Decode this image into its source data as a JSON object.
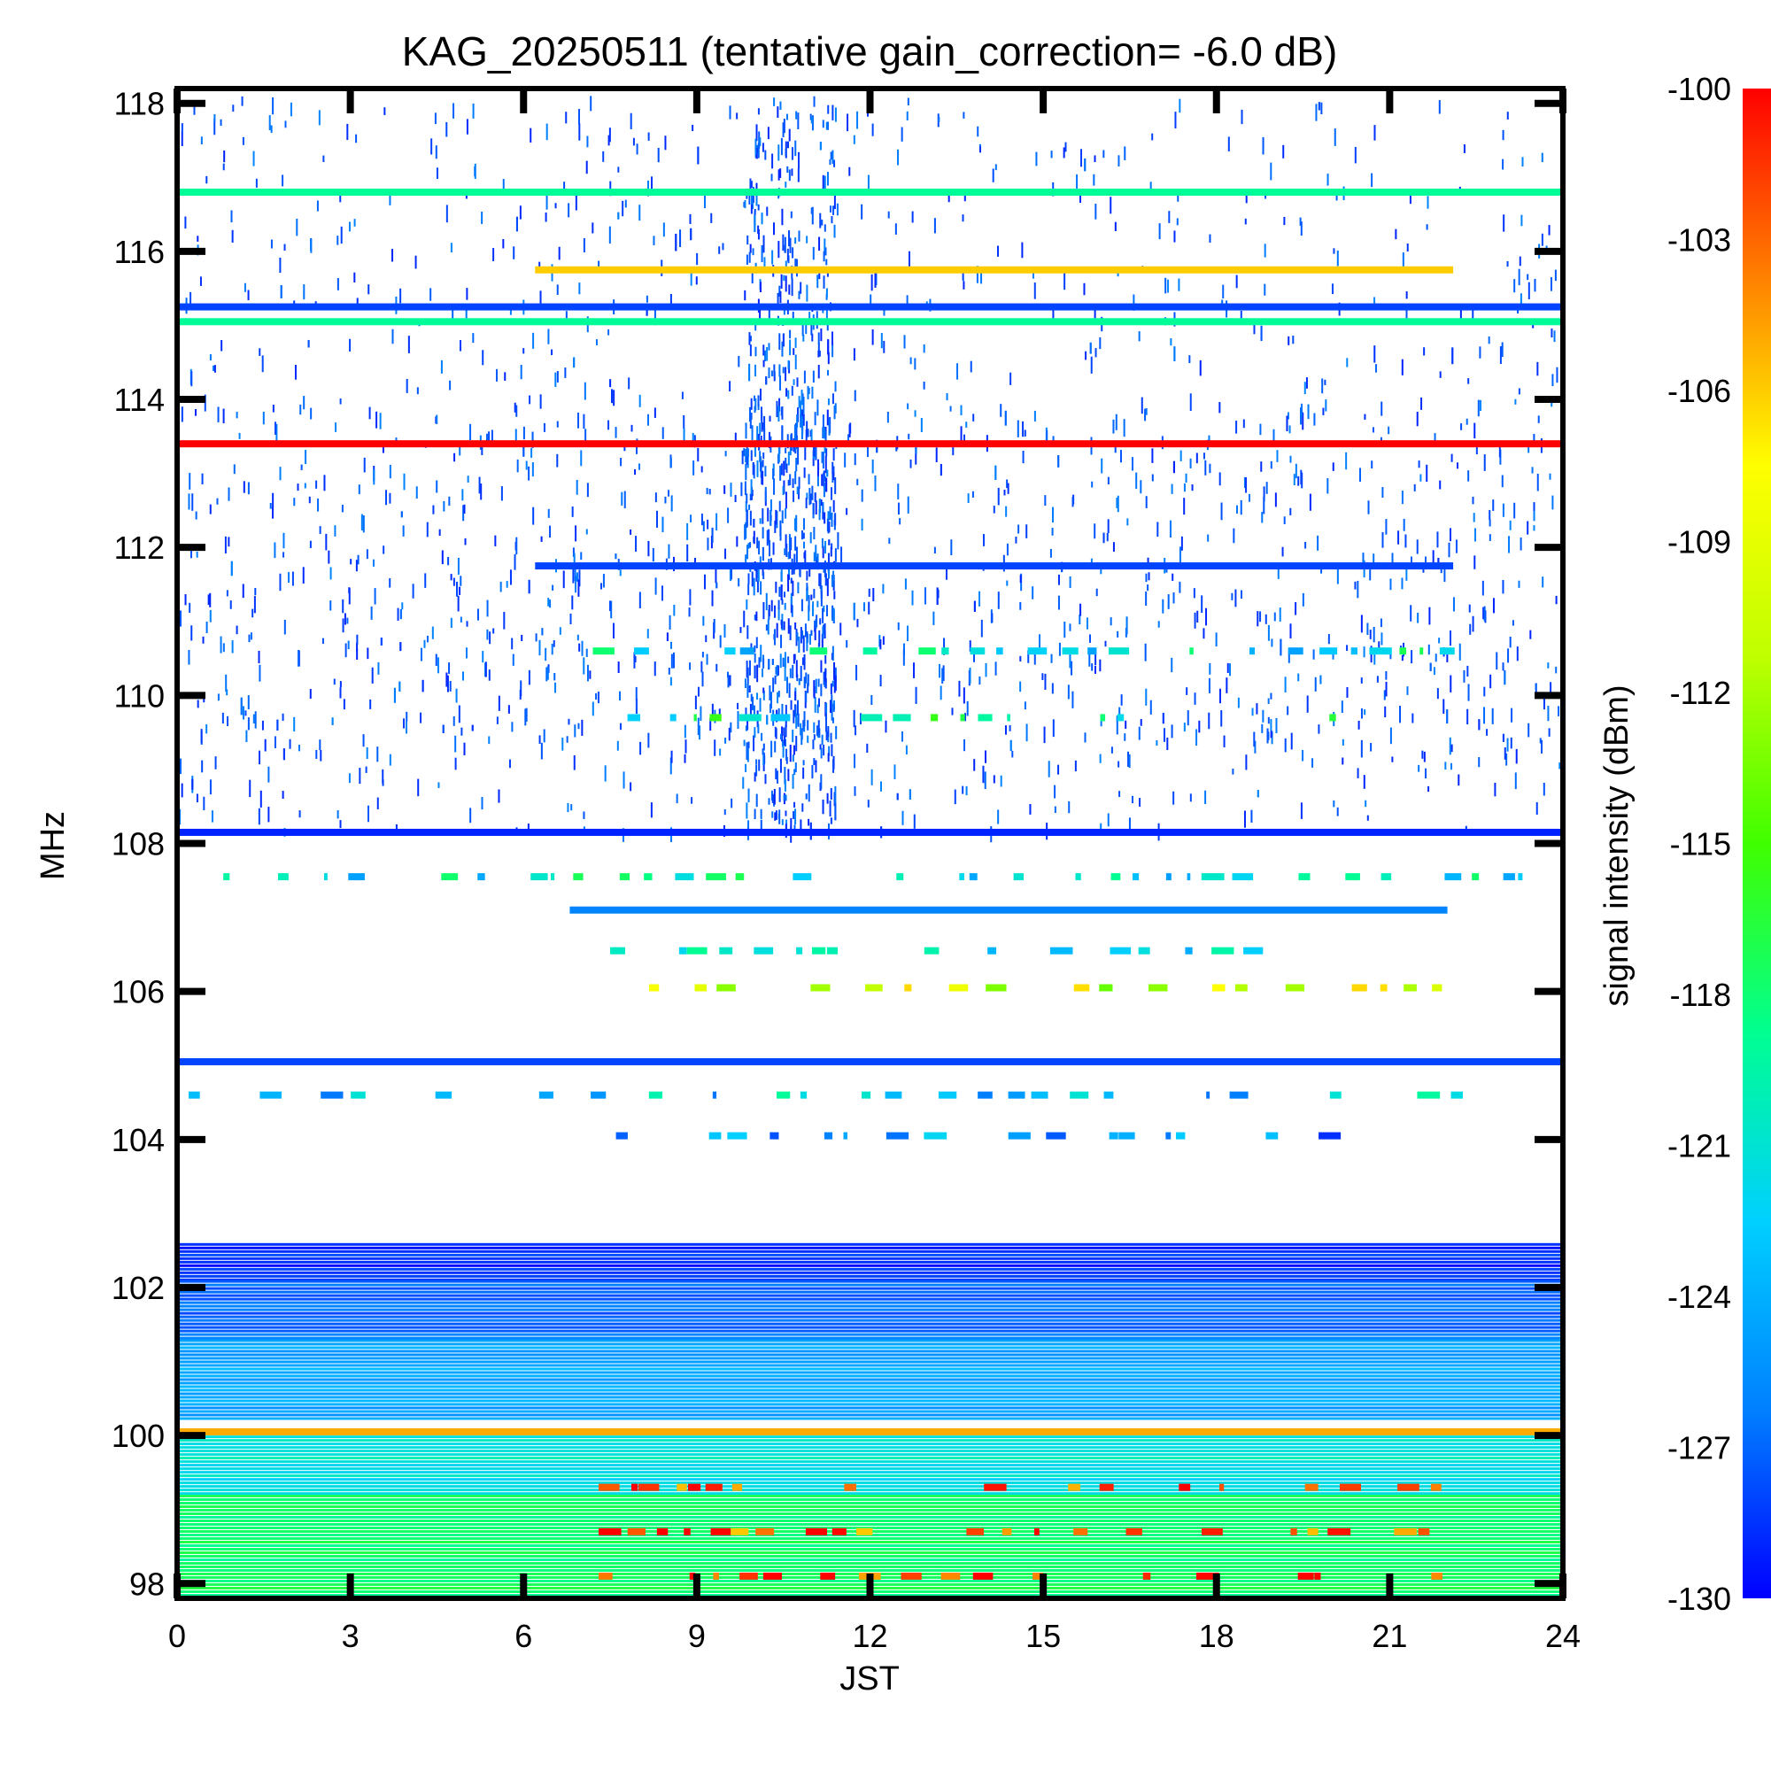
{
  "chart_data": {
    "type": "heatmap",
    "title": "KAG_20250511 (tentative gain_correction= -6.0 dB)",
    "xlabel": "JST",
    "ylabel": "MHz",
    "colorbar_label": "signal intensity (dBm)",
    "xlim": [
      0,
      24
    ],
    "ylim": [
      97.8,
      118.2
    ],
    "clim": [
      -130,
      -100
    ],
    "x_ticks": [
      0,
      3,
      6,
      9,
      12,
      15,
      18,
      21,
      24
    ],
    "x_tick_labels": [
      "0",
      "3",
      "6",
      "9",
      "12",
      "15",
      "18",
      "21",
      "24"
    ],
    "y_ticks": [
      98,
      100,
      102,
      104,
      106,
      108,
      110,
      112,
      114,
      116,
      118
    ],
    "y_tick_labels": [
      "98",
      "100",
      "102",
      "104",
      "106",
      "108",
      "110",
      "112",
      "114",
      "116",
      "118"
    ],
    "colorbar_ticks": [
      -100,
      -103,
      -106,
      -109,
      -112,
      -115,
      -118,
      -121,
      -124,
      -127,
      -130
    ],
    "colorbar_tick_labels": [
      "-100",
      "-103",
      "-106",
      "-109",
      "-112",
      "-115",
      "-118",
      "-121",
      "-124",
      "-127",
      "-130"
    ],
    "colormap": [
      "#0000ff",
      "#0080ff",
      "#00d0ff",
      "#00ff90",
      "#40ff00",
      "#c0ff00",
      "#ffff00",
      "#ff8000",
      "#ff0000"
    ],
    "continuous_bands": [
      {
        "freq": 116.8,
        "t_start": 0,
        "t_end": 24,
        "dbm": -119
      },
      {
        "freq": 115.75,
        "t_start": 6.2,
        "t_end": 22.1,
        "dbm": -106
      },
      {
        "freq": 115.25,
        "t_start": 0,
        "t_end": 24,
        "dbm": -128
      },
      {
        "freq": 115.05,
        "t_start": 0,
        "t_end": 24,
        "dbm": -119
      },
      {
        "freq": 113.4,
        "t_start": 0,
        "t_end": 24,
        "dbm": -100
      },
      {
        "freq": 111.75,
        "t_start": 6.2,
        "t_end": 22.1,
        "dbm": -128
      },
      {
        "freq": 108.15,
        "t_start": 0,
        "t_end": 24,
        "dbm": -129
      },
      {
        "freq": 107.1,
        "t_start": 6.8,
        "t_end": 22.0,
        "dbm": -126
      },
      {
        "freq": 105.05,
        "t_start": 0,
        "t_end": 24,
        "dbm": -128
      },
      {
        "freq": 100.05,
        "t_start": 0,
        "t_end": 24,
        "dbm": -105
      }
    ],
    "noise_regions": [
      {
        "f_min": 102.1,
        "f_max": 102.6,
        "dbm": -129
      },
      {
        "f_min": 101.3,
        "f_max": 102.1,
        "dbm": -127
      },
      {
        "f_min": 100.2,
        "f_max": 101.3,
        "dbm": -124.5
      },
      {
        "f_min": 99.2,
        "f_max": 100.0,
        "dbm": -121
      },
      {
        "f_min": 97.8,
        "f_max": 99.2,
        "dbm": -118
      }
    ],
    "intermittent_bands": [
      {
        "freq": 107.55,
        "t_start": 0.8,
        "t_end": 23.6,
        "dbm": -121
      },
      {
        "freq": 106.55,
        "t_start": 7.5,
        "t_end": 20.5,
        "dbm": -122
      },
      {
        "freq": 106.05,
        "t_start": 7.5,
        "t_end": 21.9,
        "dbm": -110
      },
      {
        "freq": 104.6,
        "t_start": 0.2,
        "t_end": 23.8,
        "dbm": -123
      },
      {
        "freq": 104.05,
        "t_start": 7.6,
        "t_end": 21.9,
        "dbm": -125
      },
      {
        "freq": 110.6,
        "t_start": 7.2,
        "t_end": 21.9,
        "dbm": -121
      },
      {
        "freq": 109.7,
        "t_start": 7.8,
        "t_end": 20.0,
        "dbm": -119
      },
      {
        "freq": 99.3,
        "t_start": 7.3,
        "t_end": 21.9,
        "dbm": -102
      },
      {
        "freq": 98.7,
        "t_start": 7.3,
        "t_end": 21.9,
        "dbm": -102
      },
      {
        "freq": 98.1,
        "t_start": 7.3,
        "t_end": 21.9,
        "dbm": -101
      }
    ],
    "scatter_region": {
      "f_min": 108.2,
      "f_max": 118.1,
      "dbm": -129
    }
  }
}
